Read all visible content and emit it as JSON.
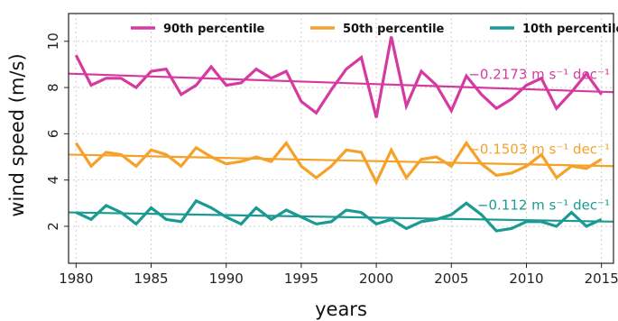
{
  "chart_data": {
    "type": "line",
    "xlabel": "years",
    "ylabel": "wind speed (m/s)",
    "xlim": [
      1979.5,
      2015.8
    ],
    "ylim": [
      0.4,
      11.2
    ],
    "grid": true,
    "legend_position": "top",
    "x_ticks": [
      1980,
      1985,
      1990,
      1995,
      2000,
      2005,
      2010,
      2015
    ],
    "y_ticks": [
      2,
      4,
      6,
      8,
      10
    ],
    "x": [
      1980,
      1981,
      1982,
      1983,
      1984,
      1985,
      1986,
      1987,
      1988,
      1989,
      1990,
      1991,
      1992,
      1993,
      1994,
      1995,
      1996,
      1997,
      1998,
      1999,
      2000,
      2001,
      2002,
      2003,
      2004,
      2005,
      2006,
      2007,
      2008,
      2009,
      2010,
      2011,
      2012,
      2013,
      2014,
      2015
    ],
    "series": [
      {
        "name": "90th percentile",
        "color": "#d63aa0",
        "values": [
          9.4,
          8.1,
          8.4,
          8.4,
          8.0,
          8.7,
          8.8,
          7.7,
          8.1,
          8.9,
          8.1,
          8.2,
          8.8,
          8.4,
          8.7,
          7.4,
          6.9,
          7.9,
          8.8,
          9.3,
          6.7,
          10.2,
          7.2,
          8.7,
          8.1,
          7.0,
          8.5,
          7.7,
          7.1,
          7.5,
          8.1,
          8.4,
          7.1,
          7.8,
          8.6,
          7.7
        ],
        "trend": {
          "start": 8.6,
          "end": 7.8,
          "label": "−0.2173 m s⁻¹ dec⁻¹"
        }
      },
      {
        "name": "50th percentile",
        "color": "#f5a12a",
        "values": [
          5.6,
          4.6,
          5.2,
          5.1,
          4.6,
          5.3,
          5.1,
          4.6,
          5.4,
          5.0,
          4.7,
          4.8,
          5.0,
          4.8,
          5.6,
          4.6,
          4.1,
          4.6,
          5.3,
          5.2,
          3.9,
          5.3,
          4.1,
          4.9,
          5.0,
          4.6,
          5.6,
          4.7,
          4.2,
          4.3,
          4.6,
          5.1,
          4.1,
          4.6,
          4.5,
          4.9
        ],
        "trend": {
          "start": 5.1,
          "end": 4.6,
          "label": "−0.1503 m s⁻¹ dec⁻¹"
        }
      },
      {
        "name": "10th percentile",
        "color": "#1a9a93",
        "values": [
          2.6,
          2.3,
          2.9,
          2.6,
          2.1,
          2.8,
          2.3,
          2.2,
          3.1,
          2.8,
          2.4,
          2.1,
          2.8,
          2.3,
          2.7,
          2.4,
          2.1,
          2.2,
          2.7,
          2.6,
          2.1,
          2.3,
          1.9,
          2.2,
          2.3,
          2.5,
          3.0,
          2.5,
          1.8,
          1.9,
          2.2,
          2.2,
          2.0,
          2.6,
          2.0,
          2.3
        ],
        "trend": {
          "start": 2.6,
          "end": 2.2,
          "label": "−0.112 m s⁻¹ dec⁻¹"
        }
      }
    ]
  }
}
